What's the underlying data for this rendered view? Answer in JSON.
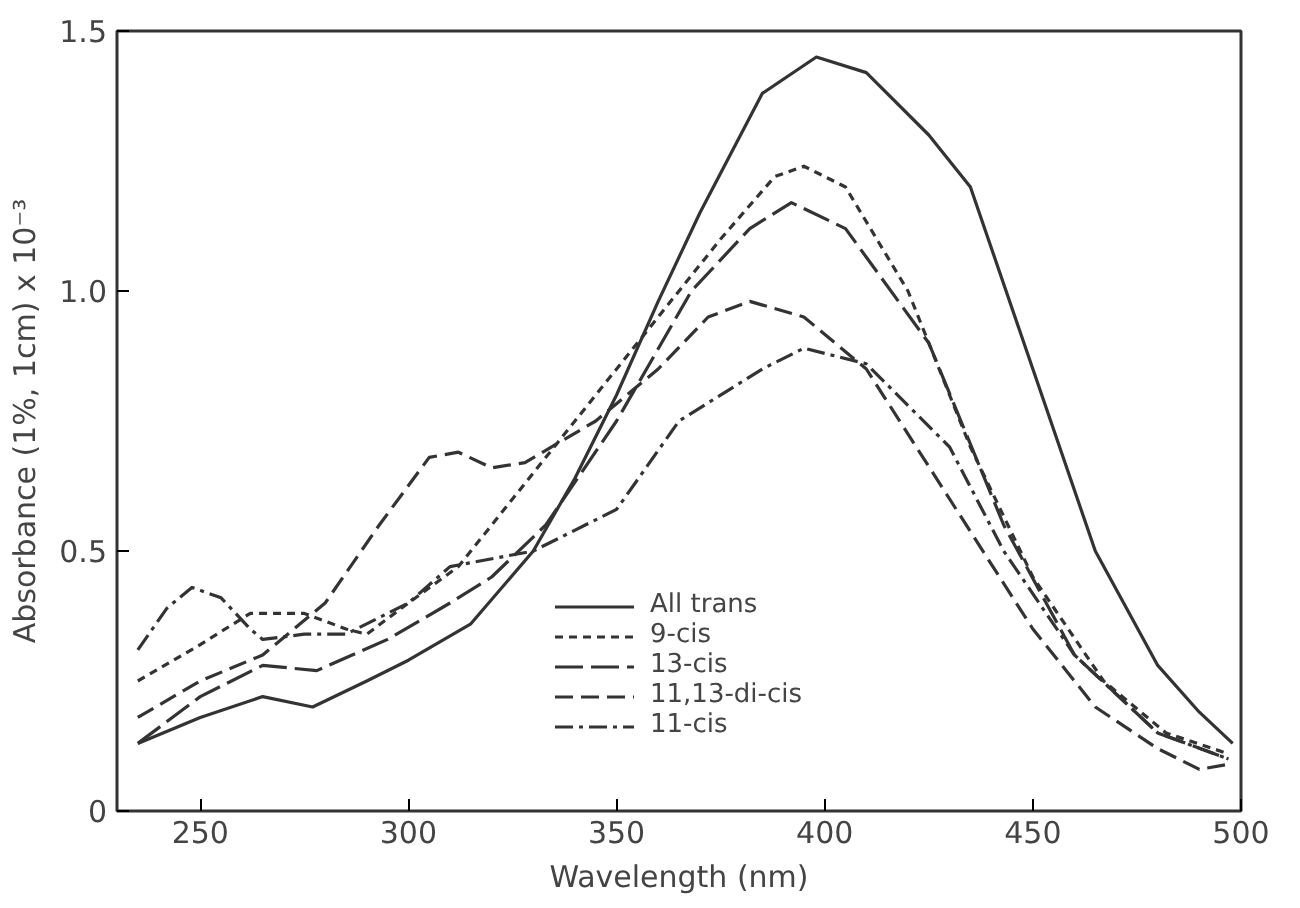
{
  "chart_data": {
    "type": "line",
    "xlabel": "Wavelength (nm)",
    "ylabel": "Absorbance (1%, 1cm) x 10⁻³",
    "xlim": [
      230,
      500
    ],
    "ylim": [
      0,
      1.5
    ],
    "xticks": [
      250,
      300,
      350,
      400,
      450,
      500
    ],
    "yticks": [
      0,
      0.5,
      {
        "value": 1.0,
        "label": "1.0"
      },
      1.5
    ],
    "grid": false,
    "legend": "bottom",
    "series": [
      {
        "name": "All trans",
        "color": "#333333",
        "line_style": "solid",
        "x": [
          235,
          250,
          265,
          277,
          290,
          300,
          315,
          330,
          340,
          350,
          360,
          370,
          385,
          398,
          410,
          425,
          435,
          450,
          465,
          480,
          490,
          498
        ],
        "values": [
          0.13,
          0.18,
          0.22,
          0.2,
          0.25,
          0.29,
          0.36,
          0.5,
          0.64,
          0.8,
          0.98,
          1.15,
          1.38,
          1.45,
          1.42,
          1.3,
          1.2,
          0.85,
          0.5,
          0.28,
          0.19,
          0.13
        ]
      },
      {
        "name": "9-cis",
        "color": "#333333",
        "line_style": "short-dashed",
        "x": [
          235,
          250,
          262,
          275,
          285,
          290,
          300,
          312,
          325,
          340,
          355,
          375,
          388,
          395,
          405,
          420,
          435,
          450,
          467,
          482,
          497
        ],
        "values": [
          0.25,
          0.32,
          0.38,
          0.38,
          0.35,
          0.34,
          0.4,
          0.47,
          0.6,
          0.75,
          0.9,
          1.1,
          1.22,
          1.24,
          1.2,
          1.0,
          0.7,
          0.45,
          0.25,
          0.15,
          0.11
        ]
      },
      {
        "name": "13-cis",
        "color": "#333333",
        "line_style": "long-dashed",
        "x": [
          235,
          250,
          265,
          278,
          295,
          310,
          320,
          333,
          350,
          368,
          382,
          392,
          405,
          425,
          443,
          460,
          480,
          497
        ],
        "values": [
          0.13,
          0.22,
          0.28,
          0.27,
          0.33,
          0.4,
          0.45,
          0.55,
          0.75,
          1.0,
          1.12,
          1.17,
          1.12,
          0.9,
          0.55,
          0.3,
          0.15,
          0.1
        ]
      },
      {
        "name": "11,13-di-cis",
        "color": "#333333",
        "line_style": "dashed",
        "x": [
          235,
          250,
          265,
          280,
          293,
          305,
          312,
          320,
          328,
          345,
          360,
          372,
          382,
          395,
          410,
          430,
          450,
          465,
          480,
          490,
          497
        ],
        "values": [
          0.18,
          0.25,
          0.3,
          0.4,
          0.55,
          0.68,
          0.69,
          0.66,
          0.67,
          0.75,
          0.85,
          0.95,
          0.98,
          0.95,
          0.85,
          0.6,
          0.35,
          0.2,
          0.12,
          0.08,
          0.09
        ]
      },
      {
        "name": "11-cis",
        "color": "#333333",
        "line_style": "dash-dot",
        "x": [
          235,
          242,
          248,
          255,
          262,
          265,
          275,
          285,
          300,
          310,
          330,
          350,
          365,
          385,
          395,
          410,
          430,
          443,
          460,
          480,
          497
        ],
        "values": [
          0.31,
          0.39,
          0.43,
          0.41,
          0.35,
          0.33,
          0.34,
          0.34,
          0.4,
          0.47,
          0.5,
          0.58,
          0.75,
          0.85,
          0.89,
          0.86,
          0.7,
          0.5,
          0.3,
          0.15,
          0.1
        ]
      }
    ]
  }
}
